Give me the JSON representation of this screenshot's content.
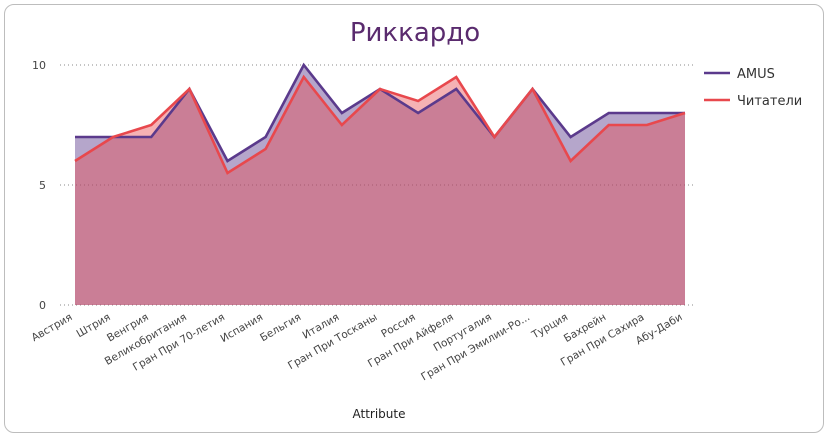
{
  "chart_data": {
    "type": "area",
    "title": "Риккардо",
    "xlabel": "Attribute",
    "ylabel": "",
    "ylim": [
      0,
      10
    ],
    "yticks": [
      0,
      5,
      10
    ],
    "categories": [
      "Австрия",
      "Штрия",
      "Венгрия",
      "Великобритания",
      "Гран При 70-летия",
      "Испания",
      "Бельгия",
      "Италия",
      "Гран При Тосканы",
      "Россия",
      "Гран При Айфеля",
      "Португалия",
      "Гран При Эмилии-Ро...",
      "Турция",
      "Бахрейн",
      "Гран При Сахира",
      "Абу-Даби"
    ],
    "series": [
      {
        "name": "AMUS",
        "color": "#5b3a8c",
        "values": [
          7,
          7,
          7,
          9,
          6,
          7,
          10,
          8,
          9,
          8,
          9,
          7,
          9,
          7,
          8,
          8,
          8
        ]
      },
      {
        "name": "Читатели",
        "color": "#e8484d",
        "values": [
          6,
          7,
          7.5,
          9,
          5.5,
          6.5,
          9.5,
          7.5,
          9,
          8.5,
          9.5,
          7,
          9,
          6,
          7.5,
          7.5,
          8
        ]
      }
    ],
    "legend_position": "right",
    "grid": true
  }
}
